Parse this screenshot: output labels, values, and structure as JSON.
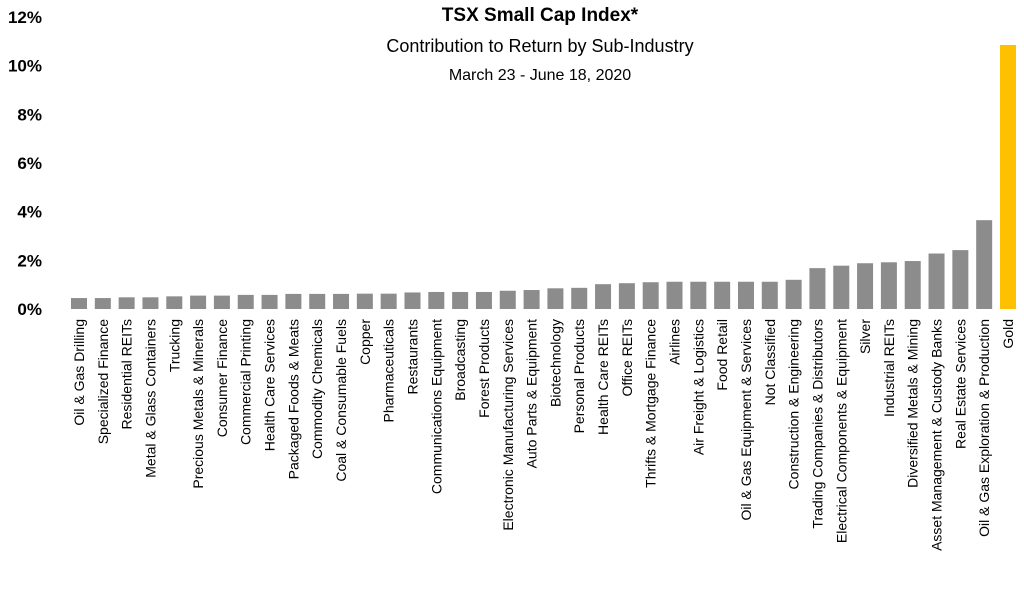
{
  "chart_data": {
    "type": "bar",
    "title": "TSX Small Cap Index*",
    "subtitle": "Contribution to Return by Sub-Industry",
    "date_range": "March 23 - June 18, 2020",
    "ylim": [
      0,
      12
    ],
    "y_ticks": [
      "0%",
      "2%",
      "4%",
      "6%",
      "8%",
      "10%",
      "12%"
    ],
    "y_tick_values": [
      0,
      2,
      4,
      6,
      8,
      10,
      12
    ],
    "grid": false,
    "colors": {
      "default": "#8c8c8c",
      "highlight": "#ffc000"
    },
    "highlight_category": "Gold",
    "categories": [
      "Oil & Gas Drilling",
      "Specialized Finance",
      "Residential REITs",
      "Metal & Glass Containers",
      "Trucking",
      "Precious Metals & Minerals",
      "Consumer Finance",
      "Commercial Printing",
      "Health Care Services",
      "Packaged Foods & Meats",
      "Commodity Chemicals",
      "Coal & Consumable Fuels",
      "Copper",
      "Pharmaceuticals",
      "Restaurants",
      "Communications Equipment",
      "Broadcasting",
      "Forest Products",
      "Electronic Manufacturing Services",
      "Auto Parts & Equipment",
      "Biotechnology",
      "Personal Products",
      "Health Care REITs",
      "Office REITs",
      "Thrifts & Mortgage Finance",
      "Airlines",
      "Air Freight & Logistics",
      "Food Retail",
      "Oil & Gas Equipment & Services",
      "Not Classified",
      "Construction & Engineering",
      "Trading Companies & Distributors",
      "Electrical Components & Equipment",
      "Silver",
      "Industrial REITs",
      "Diversified Metals & Mining",
      "Asset Management & Custody Banks",
      "Real Estate Services",
      "Oil & Gas Exploration & Production",
      "Gold"
    ],
    "values": [
      0.45,
      0.45,
      0.48,
      0.48,
      0.52,
      0.55,
      0.55,
      0.58,
      0.58,
      0.62,
      0.62,
      0.62,
      0.63,
      0.63,
      0.68,
      0.7,
      0.7,
      0.7,
      0.75,
      0.78,
      0.85,
      0.87,
      1.02,
      1.06,
      1.1,
      1.12,
      1.12,
      1.12,
      1.12,
      1.12,
      1.2,
      1.68,
      1.78,
      1.88,
      1.92,
      1.97,
      2.28,
      2.42,
      3.65,
      10.85
    ]
  }
}
